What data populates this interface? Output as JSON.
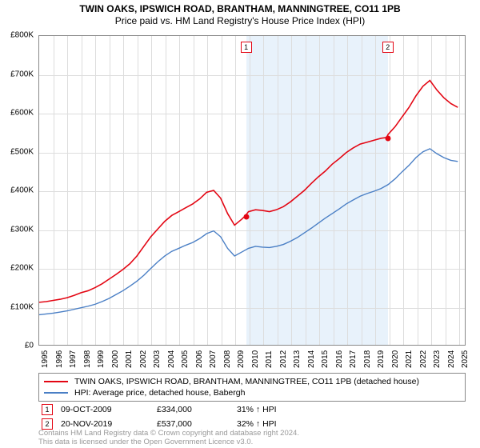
{
  "title_line1": "TWIN OAKS, IPSWICH ROAD, BRANTHAM, MANNINGTREE, CO11 1PB",
  "title_line2": "Price paid vs. HM Land Registry's House Price Index (HPI)",
  "chart": {
    "type": "line",
    "background_color": "#ffffff",
    "grid_color": "#dddddd",
    "axis_color": "#888888",
    "band_color": "#e8f2fb",
    "band_start_year": 2009.77,
    "band_end_year": 2019.89,
    "x_domain": [
      1995,
      2025.5
    ],
    "y_domain": [
      0,
      800000
    ],
    "y_ticks": [
      0,
      100000,
      200000,
      300000,
      400000,
      500000,
      600000,
      700000,
      800000
    ],
    "y_tick_labels": [
      "£0",
      "£100K",
      "£200K",
      "£300K",
      "£400K",
      "£500K",
      "£600K",
      "£700K",
      "£800K"
    ],
    "x_ticks": [
      1995,
      1996,
      1997,
      1998,
      1999,
      2000,
      2001,
      2002,
      2003,
      2004,
      2005,
      2006,
      2007,
      2008,
      2009,
      2010,
      2011,
      2012,
      2013,
      2014,
      2015,
      2016,
      2017,
      2018,
      2019,
      2020,
      2021,
      2022,
      2023,
      2024,
      2025
    ],
    "x_tick_labels": [
      "1995",
      "1996",
      "1997",
      "1998",
      "1999",
      "2000",
      "2001",
      "2002",
      "2003",
      "2004",
      "2005",
      "2006",
      "2007",
      "2008",
      "2009",
      "2010",
      "2011",
      "2012",
      "2013",
      "2014",
      "2015",
      "2016",
      "2017",
      "2018",
      "2019",
      "2020",
      "2021",
      "2022",
      "2023",
      "2024",
      "2025"
    ],
    "series": [
      {
        "name": "property",
        "color": "#e30613",
        "width": 1.6,
        "data": [
          [
            1995,
            110000
          ],
          [
            1995.5,
            112000
          ],
          [
            1996,
            115000
          ],
          [
            1996.5,
            118000
          ],
          [
            1997,
            122000
          ],
          [
            1997.5,
            128000
          ],
          [
            1998,
            135000
          ],
          [
            1998.5,
            140000
          ],
          [
            1999,
            148000
          ],
          [
            1999.5,
            158000
          ],
          [
            2000,
            170000
          ],
          [
            2000.5,
            182000
          ],
          [
            2001,
            195000
          ],
          [
            2001.5,
            210000
          ],
          [
            2002,
            230000
          ],
          [
            2002.5,
            255000
          ],
          [
            2003,
            280000
          ],
          [
            2003.5,
            300000
          ],
          [
            2004,
            320000
          ],
          [
            2004.5,
            335000
          ],
          [
            2005,
            345000
          ],
          [
            2005.5,
            355000
          ],
          [
            2006,
            365000
          ],
          [
            2006.5,
            378000
          ],
          [
            2007,
            395000
          ],
          [
            2007.5,
            400000
          ],
          [
            2008,
            380000
          ],
          [
            2008.5,
            340000
          ],
          [
            2009,
            310000
          ],
          [
            2009.5,
            325000
          ],
          [
            2009.77,
            334000
          ],
          [
            2010,
            345000
          ],
          [
            2010.5,
            350000
          ],
          [
            2011,
            348000
          ],
          [
            2011.5,
            345000
          ],
          [
            2012,
            350000
          ],
          [
            2012.5,
            358000
          ],
          [
            2013,
            370000
          ],
          [
            2013.5,
            385000
          ],
          [
            2014,
            400000
          ],
          [
            2014.5,
            418000
          ],
          [
            2015,
            435000
          ],
          [
            2015.5,
            450000
          ],
          [
            2016,
            468000
          ],
          [
            2016.5,
            482000
          ],
          [
            2017,
            498000
          ],
          [
            2017.5,
            510000
          ],
          [
            2018,
            520000
          ],
          [
            2018.5,
            525000
          ],
          [
            2019,
            530000
          ],
          [
            2019.5,
            535000
          ],
          [
            2019.89,
            537000
          ],
          [
            2020,
            545000
          ],
          [
            2020.5,
            565000
          ],
          [
            2021,
            590000
          ],
          [
            2021.5,
            615000
          ],
          [
            2022,
            645000
          ],
          [
            2022.5,
            670000
          ],
          [
            2023,
            685000
          ],
          [
            2023.5,
            660000
          ],
          [
            2024,
            640000
          ],
          [
            2024.5,
            625000
          ],
          [
            2025,
            615000
          ]
        ]
      },
      {
        "name": "hpi",
        "color": "#4a7fc5",
        "width": 1.4,
        "data": [
          [
            1995,
            78000
          ],
          [
            1995.5,
            80000
          ],
          [
            1996,
            82000
          ],
          [
            1996.5,
            85000
          ],
          [
            1997,
            88000
          ],
          [
            1997.5,
            92000
          ],
          [
            1998,
            96000
          ],
          [
            1998.5,
            100000
          ],
          [
            1999,
            105000
          ],
          [
            1999.5,
            112000
          ],
          [
            2000,
            120000
          ],
          [
            2000.5,
            130000
          ],
          [
            2001,
            140000
          ],
          [
            2001.5,
            152000
          ],
          [
            2002,
            165000
          ],
          [
            2002.5,
            180000
          ],
          [
            2003,
            198000
          ],
          [
            2003.5,
            215000
          ],
          [
            2004,
            230000
          ],
          [
            2004.5,
            242000
          ],
          [
            2005,
            250000
          ],
          [
            2005.5,
            258000
          ],
          [
            2006,
            265000
          ],
          [
            2006.5,
            275000
          ],
          [
            2007,
            288000
          ],
          [
            2007.5,
            295000
          ],
          [
            2008,
            280000
          ],
          [
            2008.5,
            250000
          ],
          [
            2009,
            230000
          ],
          [
            2009.5,
            240000
          ],
          [
            2010,
            250000
          ],
          [
            2010.5,
            255000
          ],
          [
            2011,
            253000
          ],
          [
            2011.5,
            252000
          ],
          [
            2012,
            255000
          ],
          [
            2012.5,
            260000
          ],
          [
            2013,
            268000
          ],
          [
            2013.5,
            278000
          ],
          [
            2014,
            290000
          ],
          [
            2014.5,
            302000
          ],
          [
            2015,
            315000
          ],
          [
            2015.5,
            328000
          ],
          [
            2016,
            340000
          ],
          [
            2016.5,
            352000
          ],
          [
            2017,
            365000
          ],
          [
            2017.5,
            375000
          ],
          [
            2018,
            385000
          ],
          [
            2018.5,
            392000
          ],
          [
            2019,
            398000
          ],
          [
            2019.5,
            405000
          ],
          [
            2020,
            415000
          ],
          [
            2020.5,
            430000
          ],
          [
            2021,
            448000
          ],
          [
            2021.5,
            465000
          ],
          [
            2022,
            485000
          ],
          [
            2022.5,
            500000
          ],
          [
            2023,
            508000
          ],
          [
            2023.5,
            495000
          ],
          [
            2024,
            485000
          ],
          [
            2024.5,
            478000
          ],
          [
            2025,
            475000
          ]
        ]
      }
    ],
    "chart_markers": [
      {
        "num": "1",
        "x_year": 2009.77,
        "y_label": 20000,
        "dot_y": 334000,
        "color": "#e30613"
      },
      {
        "num": "2",
        "x_year": 2019.89,
        "y_label": 20000,
        "dot_y": 537000,
        "color": "#e30613"
      }
    ]
  },
  "legend": {
    "items": [
      {
        "color": "#e30613",
        "label": "TWIN OAKS, IPSWICH ROAD, BRANTHAM, MANNINGTREE, CO11 1PB (detached house)"
      },
      {
        "color": "#4a7fc5",
        "label": "HPI: Average price, detached house, Babergh"
      }
    ]
  },
  "marker_rows": [
    {
      "num": "1",
      "color": "#e30613",
      "date": "09-OCT-2009",
      "price": "£334,000",
      "delta": "31% ↑ HPI"
    },
    {
      "num": "2",
      "color": "#e30613",
      "date": "20-NOV-2019",
      "price": "£537,000",
      "delta": "32% ↑ HPI"
    }
  ],
  "footer_line1": "Contains HM Land Registry data © Crown copyright and database right 2024.",
  "footer_line2": "This data is licensed under the Open Government Licence v3.0."
}
